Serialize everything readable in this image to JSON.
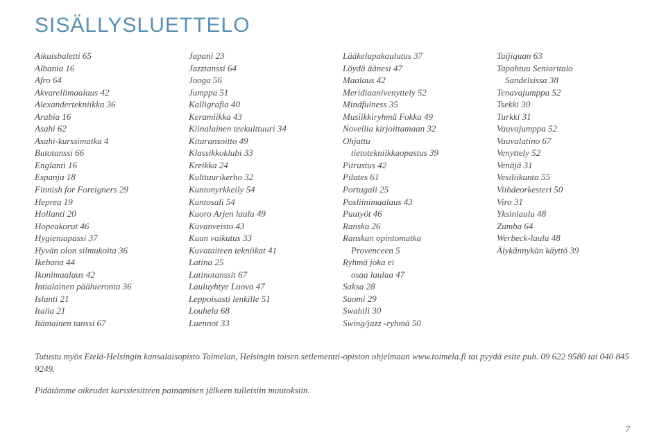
{
  "title": "SISÄLLYSLUETTELO",
  "title_color": "#5a8fb0",
  "title_fontsize": 30,
  "body_fontsize": 13,
  "text_color": "#4a4a4a",
  "columns": [
    [
      {
        "t": "Aikuisbaletti 65"
      },
      {
        "t": "Albania 16"
      },
      {
        "t": "Afro 64"
      },
      {
        "t": "Akvarellimaalaus 42"
      },
      {
        "t": "Alexandertekniikka 36"
      },
      {
        "t": "Arabia 16"
      },
      {
        "t": "Asahi 62"
      },
      {
        "t": "Asahi-kurssimatka 4"
      },
      {
        "t": "Butotanssi 66"
      },
      {
        "t": "Englanti 16"
      },
      {
        "t": "Espanja 18"
      },
      {
        "t": "Finnish for Foreigners 29"
      },
      {
        "t": "Heprea 19"
      },
      {
        "t": "Hollanti 20"
      },
      {
        "t": "Hopeakorut 46"
      },
      {
        "t": "Hygieniapassi 37"
      },
      {
        "t": "Hyvän olon silmukoita 36"
      },
      {
        "t": "Ikebana 44"
      },
      {
        "t": "Ikonimaalaus 42"
      },
      {
        "t": "Intialainen päähieronta 36"
      },
      {
        "t": "Islanti 21"
      },
      {
        "t": "Italia 21"
      },
      {
        "t": "Itämainen tanssi 67"
      }
    ],
    [
      {
        "t": "Japani 23"
      },
      {
        "t": "Jazztanssi 64"
      },
      {
        "t": "Jooga 56"
      },
      {
        "t": "Jumppa 51"
      },
      {
        "t": "Kalligrafia 40"
      },
      {
        "t": "Keramiikka 43"
      },
      {
        "t": "Kiinalainen teekulttuuri 34"
      },
      {
        "t": "Kitaransoitto 49"
      },
      {
        "t": "Klassikkoklubi 33"
      },
      {
        "t": "Kreikka 24"
      },
      {
        "t": "Kulttuurikerho 32"
      },
      {
        "t": "Kuntonyrkkeily 54"
      },
      {
        "t": "Kuntosali 54"
      },
      {
        "t": "Kuoro Arjen laulu 49"
      },
      {
        "t": "Kuvanveisto 43"
      },
      {
        "t": "Kuun vaikutus 33"
      },
      {
        "t": "Kuvataiteen tekniikat 41"
      },
      {
        "t": "Latina 25"
      },
      {
        "t": "Latinotanssit 67"
      },
      {
        "t": "Lauluyhtye Luova 47"
      },
      {
        "t": "Leppoisasti lenkille 51"
      },
      {
        "t": "Louhela 68"
      },
      {
        "t": "Luennot 33"
      }
    ],
    [
      {
        "t": "Lääkelupakoulutus 37"
      },
      {
        "t": "Löydä äänesi 47"
      },
      {
        "t": "Maalaus 42"
      },
      {
        "t": "Meridiaanivenyttely 52"
      },
      {
        "t": "Mindfulness 35"
      },
      {
        "t": "Musiikkiryhmä Fokka 49"
      },
      {
        "t": "Novellia kirjoittamaan 32"
      },
      {
        "t": "Ohjattu"
      },
      {
        "t": "tietotekniikkaopastus 39",
        "indent": true
      },
      {
        "t": "Piirustus 42"
      },
      {
        "t": "Pilates 61"
      },
      {
        "t": "Portugali 25"
      },
      {
        "t": "Posliinimaalaus 43"
      },
      {
        "t": "Puutyöt 46"
      },
      {
        "t": "Ranska 26"
      },
      {
        "t": "Ranskan opintomatka"
      },
      {
        "t": "Provenceen 5",
        "indent": true
      },
      {
        "t": "Ryhmä joka ei"
      },
      {
        "t": "osaa laulaa 47",
        "indent": true
      },
      {
        "t": "Saksa 28"
      },
      {
        "t": "Suomi 29"
      },
      {
        "t": "Swahili 30"
      },
      {
        "t": "Swing/jazz -ryhmä 50"
      }
    ],
    [
      {
        "t": "Taijiquan 63"
      },
      {
        "t": "Tapahtuu Senioritalo"
      },
      {
        "t": "Sandelsissa 38",
        "indent": true
      },
      {
        "t": "Tenavajumppa 52"
      },
      {
        "t": "Tsekki 30"
      },
      {
        "t": "Turkki 31"
      },
      {
        "t": "Vauvajumppa 52"
      },
      {
        "t": "Vauvalatino 67"
      },
      {
        "t": "Venyttely 52"
      },
      {
        "t": "Venäjä 31"
      },
      {
        "t": "Vesiliikunta 55"
      },
      {
        "t": "Viihdeorkesteri 50"
      },
      {
        "t": "Viro 31"
      },
      {
        "t": "Yksinlaulu 48"
      },
      {
        "t": "Zumba 64"
      },
      {
        "t": "Werbeck-laulu 48"
      },
      {
        "t": "Älykännykän käyttö 39"
      }
    ]
  ],
  "footer": {
    "line1": "Tutustu myös Etelä-Helsingin kansalaisopisto Toimelan, Helsingin toisen setlementti-opiston ohjelmaan www.toimela.fi tai pyydä esite puh. 09 622 9580 tai 040 845 9249.",
    "line2": "Pidätämme oikeudet kurssiesitteen painamisen jälkeen tulleisiin muutoksiin."
  },
  "page_number": "7"
}
